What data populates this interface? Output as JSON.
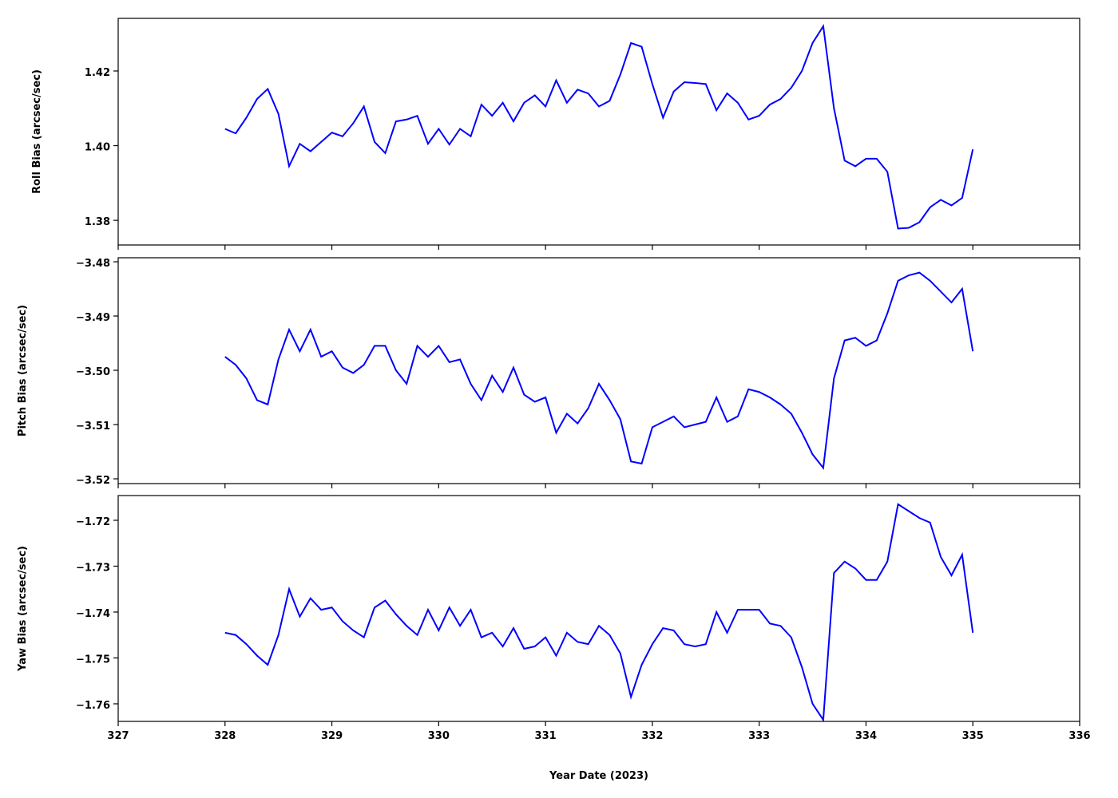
{
  "chart_data": [
    {
      "type": "line",
      "ylabel": "Roll Bias (arcsec/sec)",
      "xlim": [
        327,
        336
      ],
      "xticks": [
        327,
        328,
        329,
        330,
        331,
        332,
        333,
        334,
        335,
        336
      ],
      "ylim": [
        1.3734,
        1.4341
      ],
      "yticks": [
        {
          "value": 1.38,
          "label": "1.38"
        },
        {
          "value": 1.4,
          "label": "1.40"
        },
        {
          "value": 1.42,
          "label": "1.42"
        }
      ],
      "x": [
        328.0,
        328.1,
        328.2,
        328.3,
        328.4,
        328.5,
        328.6,
        328.7,
        328.8,
        328.9,
        329.0,
        329.1,
        329.2,
        329.3,
        329.4,
        329.5,
        329.6,
        329.7,
        329.8,
        329.9,
        330.0,
        330.1,
        330.2,
        330.3,
        330.4,
        330.5,
        330.6,
        330.7,
        330.8,
        330.9,
        331.0,
        331.1,
        331.2,
        331.3,
        331.4,
        331.5,
        331.6,
        331.7,
        331.8,
        331.9,
        332.0,
        332.1,
        332.2,
        332.3,
        332.4,
        332.5,
        332.6,
        332.7,
        332.8,
        332.9,
        333.0,
        333.1,
        333.2,
        333.3,
        333.4,
        333.5,
        333.6,
        333.7,
        333.8,
        333.9,
        334.0,
        334.1,
        334.2,
        334.3,
        334.4,
        334.5,
        334.6,
        334.7,
        334.8,
        334.9,
        335.0
      ],
      "series": [
        {
          "color": "#0000ff",
          "values": [
            1.4045,
            1.4033,
            1.4075,
            1.4125,
            1.4152,
            1.4085,
            1.3945,
            1.4005,
            1.3985,
            1.401,
            1.4035,
            1.4025,
            1.406,
            1.4105,
            1.401,
            1.398,
            1.4065,
            1.407,
            1.408,
            1.4005,
            1.4045,
            1.4003,
            1.4045,
            1.4025,
            1.411,
            1.408,
            1.4115,
            1.4065,
            1.4115,
            1.4135,
            1.4105,
            1.4175,
            1.4115,
            1.415,
            1.414,
            1.4105,
            1.412,
            1.419,
            1.4275,
            1.4265,
            1.4165,
            1.4075,
            1.4145,
            1.417,
            1.4168,
            1.4165,
            1.4095,
            1.414,
            1.4115,
            1.407,
            1.408,
            1.411,
            1.4125,
            1.4155,
            1.42,
            1.4275,
            1.432,
            1.41,
            1.396,
            1.3945,
            1.3965,
            1.3965,
            1.393,
            1.3778,
            1.378,
            1.3795,
            1.3835,
            1.3855,
            1.384,
            1.386,
            1.399
          ]
        }
      ]
    },
    {
      "type": "line",
      "ylabel": "Pitch Bias (arcsec/sec)",
      "xlim": [
        327,
        336
      ],
      "xticks": [
        327,
        328,
        329,
        330,
        331,
        332,
        333,
        334,
        335,
        336
      ],
      "ylim": [
        -3.52088,
        -3.47926
      ],
      "yticks": [
        {
          "value": -3.52,
          "label": "−3.52"
        },
        {
          "value": -3.51,
          "label": "−3.51"
        },
        {
          "value": -3.5,
          "label": "−3.50"
        },
        {
          "value": -3.49,
          "label": "−3.49"
        },
        {
          "value": -3.48,
          "label": "−3.48"
        }
      ],
      "x": [
        328.0,
        328.1,
        328.2,
        328.3,
        328.4,
        328.5,
        328.6,
        328.7,
        328.8,
        328.9,
        329.0,
        329.1,
        329.2,
        329.3,
        329.4,
        329.5,
        329.6,
        329.7,
        329.8,
        329.9,
        330.0,
        330.1,
        330.2,
        330.3,
        330.4,
        330.5,
        330.6,
        330.7,
        330.8,
        330.9,
        331.0,
        331.1,
        331.2,
        331.3,
        331.4,
        331.5,
        331.6,
        331.7,
        331.8,
        331.9,
        332.0,
        332.1,
        332.2,
        332.3,
        332.4,
        332.5,
        332.6,
        332.7,
        332.8,
        332.9,
        333.0,
        333.1,
        333.2,
        333.3,
        333.4,
        333.5,
        333.6,
        333.7,
        333.8,
        333.9,
        334.0,
        334.1,
        334.2,
        334.3,
        334.4,
        334.5,
        334.6,
        334.7,
        334.8,
        334.9,
        335.0
      ],
      "series": [
        {
          "color": "#0000ff",
          "values": [
            -3.4975,
            -3.499,
            -3.5015,
            -3.5055,
            -3.5063,
            -3.498,
            -3.4925,
            -3.4965,
            -3.4925,
            -3.4975,
            -3.4965,
            -3.4995,
            -3.5005,
            -3.499,
            -3.4955,
            -3.4955,
            -3.5,
            -3.5025,
            -3.4955,
            -3.4975,
            -3.4955,
            -3.4985,
            -3.498,
            -3.5025,
            -3.5055,
            -3.501,
            -3.504,
            -3.4995,
            -3.5045,
            -3.5058,
            -3.505,
            -3.5115,
            -3.508,
            -3.5098,
            -3.507,
            -3.5025,
            -3.5055,
            -3.509,
            -3.5168,
            -3.5172,
            -3.5105,
            -3.5095,
            -3.5085,
            -3.5105,
            -3.51,
            -3.5095,
            -3.505,
            -3.5095,
            -3.5085,
            -3.5035,
            -3.504,
            -3.505,
            -3.5063,
            -3.508,
            -3.5115,
            -3.5155,
            -3.518,
            -3.5015,
            -3.4945,
            -3.494,
            -3.4955,
            -3.4945,
            -3.4895,
            -3.4835,
            -3.4825,
            -3.482,
            -3.4835,
            -3.4855,
            -3.4875,
            -3.485,
            -3.4965
          ]
        }
      ]
    },
    {
      "type": "line",
      "ylabel": "Yaw Bias (arcsec/sec)",
      "xlabel": "Year Date (2023)",
      "xlim": [
        327,
        336
      ],
      "xticks": [
        327,
        328,
        329,
        330,
        331,
        332,
        333,
        334,
        335,
        336
      ],
      "ylim": [
        -1.76383,
        -1.71461
      ],
      "yticks": [
        {
          "value": -1.76,
          "label": "−1.76"
        },
        {
          "value": -1.75,
          "label": "−1.75"
        },
        {
          "value": -1.74,
          "label": "−1.74"
        },
        {
          "value": -1.73,
          "label": "−1.73"
        },
        {
          "value": -1.72,
          "label": "−1.72"
        }
      ],
      "x": [
        328.0,
        328.1,
        328.2,
        328.3,
        328.4,
        328.5,
        328.6,
        328.7,
        328.8,
        328.9,
        329.0,
        329.1,
        329.2,
        329.3,
        329.4,
        329.5,
        329.6,
        329.7,
        329.8,
        329.9,
        330.0,
        330.1,
        330.2,
        330.3,
        330.4,
        330.5,
        330.6,
        330.7,
        330.8,
        330.9,
        331.0,
        331.1,
        331.2,
        331.3,
        331.4,
        331.5,
        331.6,
        331.7,
        331.8,
        331.9,
        332.0,
        332.1,
        332.2,
        332.3,
        332.4,
        332.5,
        332.6,
        332.7,
        332.8,
        332.9,
        333.0,
        333.1,
        333.2,
        333.3,
        333.4,
        333.5,
        333.6,
        333.7,
        333.8,
        333.9,
        334.0,
        334.1,
        334.2,
        334.3,
        334.4,
        334.5,
        334.6,
        334.7,
        334.8,
        334.9,
        335.0
      ],
      "series": [
        {
          "color": "#0000ff",
          "values": [
            -1.7445,
            -1.745,
            -1.747,
            -1.7495,
            -1.7515,
            -1.745,
            -1.735,
            -1.741,
            -1.737,
            -1.7395,
            -1.739,
            -1.742,
            -1.744,
            -1.7455,
            -1.739,
            -1.7375,
            -1.7405,
            -1.743,
            -1.745,
            -1.7395,
            -1.744,
            -1.739,
            -1.743,
            -1.7395,
            -1.7455,
            -1.7445,
            -1.7475,
            -1.7435,
            -1.748,
            -1.7475,
            -1.7455,
            -1.7495,
            -1.7445,
            -1.7465,
            -1.747,
            -1.743,
            -1.745,
            -1.749,
            -1.7585,
            -1.7515,
            -1.747,
            -1.7435,
            -1.744,
            -1.747,
            -1.7475,
            -1.747,
            -1.74,
            -1.7445,
            -1.7395,
            -1.7395,
            -1.7395,
            -1.7425,
            -1.743,
            -1.7455,
            -1.752,
            -1.76,
            -1.7635,
            -1.7315,
            -1.729,
            -1.7305,
            -1.733,
            -1.733,
            -1.729,
            -1.7165,
            -1.718,
            -1.7195,
            -1.7205,
            -1.728,
            -1.732,
            -1.7275,
            -1.7445
          ]
        }
      ]
    }
  ]
}
